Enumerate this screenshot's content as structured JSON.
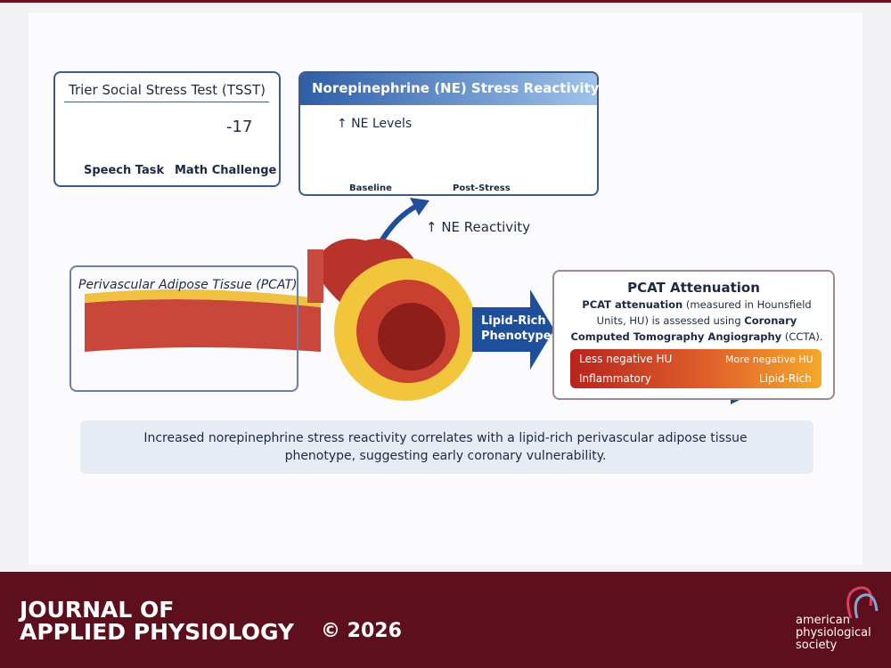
{
  "tsst": {
    "title": "Trier Social Stress Test (TSST)",
    "speech": "Speech Task",
    "math": "Math Challenge",
    "number": "-17"
  },
  "ne": {
    "title": "Norepinephrine (NE) Stress Reactivity",
    "axis_label": "↑ NE Levels",
    "start": "Baseline",
    "end": "Post-Stress"
  },
  "arrow_label": "↑ NE Reactivity",
  "pcat_tissue": {
    "title": "Perivascular Adipose Tissue (PCAT)"
  },
  "phenotype": {
    "line1": "Lipid-Rich",
    "line2": "Phenotype"
  },
  "attenuation": {
    "title": "PCAT Attenuation",
    "text": {
      "bold1": "PCAT attenuation",
      "plain1": " (measured in Hounsfield Units, HU) is assessed using ",
      "bold2": "Coronary Computed Tomography Angiography",
      "plain2": " (CCTA)."
    },
    "scale": {
      "top_left": "Less negative HU",
      "top_right": "More negative HU",
      "bottom_left": "Inflammatory",
      "bottom_right": "Lipid-Rich"
    }
  },
  "summary": "Increased norepinephrine stress reactivity correlates with a lipid-rich perivascular adipose tissue phenotype, suggesting early coronary vulnerability.",
  "footer": {
    "journal_line1": "JOURNAL OF",
    "journal_line2": "APPLIED PHYSIOLOGY",
    "copyright": "© 2026",
    "society_line1": "american",
    "society_line2": "physiological",
    "society_line3": "society"
  }
}
